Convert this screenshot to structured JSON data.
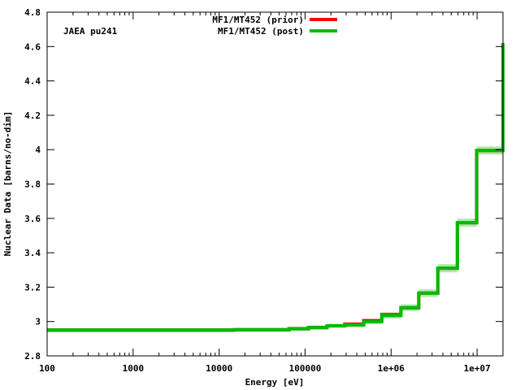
{
  "chart_data": {
    "type": "line",
    "annotation": "JAEA pu241",
    "xlabel": "Energy [eV]",
    "ylabel": "Nuclear Data [barns/no-dim]",
    "x_scale": "log",
    "xlim": [
      100,
      20000000
    ],
    "ylim": [
      2.8,
      4.8
    ],
    "x_ticks": [
      {
        "value": 100,
        "label": "100"
      },
      {
        "value": 1000,
        "label": "1000"
      },
      {
        "value": 10000,
        "label": "10000"
      },
      {
        "value": 100000,
        "label": "100000"
      },
      {
        "value": 1000000,
        "label": "1e+06"
      },
      {
        "value": 10000000,
        "label": "1e+07"
      }
    ],
    "y_ticks": [
      {
        "value": 2.8,
        "label": "2.8"
      },
      {
        "value": 3.0,
        "label": "3"
      },
      {
        "value": 3.2,
        "label": "3.2"
      },
      {
        "value": 3.4,
        "label": "3.4"
      },
      {
        "value": 3.6,
        "label": "3.6"
      },
      {
        "value": 3.8,
        "label": "3.8"
      },
      {
        "value": 4.0,
        "label": "4"
      },
      {
        "value": 4.2,
        "label": "4.2"
      },
      {
        "value": 4.4,
        "label": "4.4"
      },
      {
        "value": 4.6,
        "label": "4.6"
      },
      {
        "value": 4.8,
        "label": "4.8"
      }
    ],
    "grid": false,
    "legend_position": "top-center",
    "uncertainty_band_color": "#b0e8b0",
    "series": [
      {
        "name": "MF1/MT452 (prior)",
        "color": "#ff0000",
        "edges": [
          100,
          15000,
          65000,
          110000,
          180000,
          290000,
          480000,
          780000,
          1300000,
          2100000,
          3500000,
          5900000,
          9900000,
          20000000
        ],
        "values": [
          2.95,
          2.952,
          2.958,
          2.965,
          2.975,
          2.985,
          3.005,
          3.04,
          3.08,
          3.165,
          3.31,
          3.575,
          3.995,
          4.62
        ]
      },
      {
        "name": "MF1/MT452 (post)",
        "color": "#00bb00",
        "edges": [
          100,
          15000,
          65000,
          110000,
          180000,
          290000,
          480000,
          780000,
          1300000,
          2100000,
          3500000,
          5900000,
          9900000,
          20000000
        ],
        "values": [
          2.95,
          2.952,
          2.958,
          2.965,
          2.975,
          2.98,
          3.0,
          3.035,
          3.08,
          3.165,
          3.31,
          3.575,
          3.995,
          4.62
        ],
        "uncertainty": [
          0.012,
          0.012,
          0.012,
          0.012,
          0.012,
          0.013,
          0.015,
          0.018,
          0.02,
          0.022,
          0.024,
          0.024,
          0.024,
          0.03
        ]
      }
    ]
  }
}
